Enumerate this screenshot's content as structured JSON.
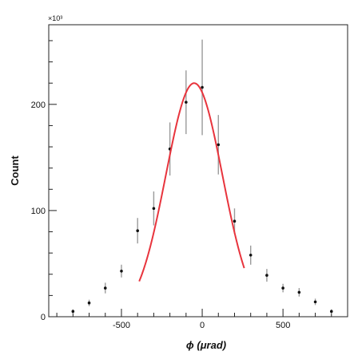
{
  "chart_data": {
    "type": "scatter",
    "title": "",
    "xlabel": "ϕ (μrad)",
    "ylabel": "Count",
    "y_multiplier_label": "×10³",
    "xlim": [
      -950,
      900
    ],
    "ylim": [
      0,
      275
    ],
    "x_ticks": [
      -500,
      0,
      500
    ],
    "x_tick_labels": [
      "-500",
      "0",
      "500"
    ],
    "y_ticks": [
      0,
      100,
      200
    ],
    "y_tick_labels": [
      "0",
      "100",
      "200"
    ],
    "grid": false,
    "series": [
      {
        "kind": "points_with_error_bars",
        "points": [
          {
            "x": -800,
            "y": 5,
            "err": 2
          },
          {
            "x": -700,
            "y": 13,
            "err": 3
          },
          {
            "x": -600,
            "y": 27,
            "err": 5
          },
          {
            "x": -500,
            "y": 43,
            "err": 6
          },
          {
            "x": -400,
            "y": 81,
            "err": 12
          },
          {
            "x": -300,
            "y": 102,
            "err": 16
          },
          {
            "x": -200,
            "y": 158,
            "err": 25
          },
          {
            "x": -100,
            "y": 202,
            "err": 30
          },
          {
            "x": 0,
            "y": 216,
            "err": 45
          },
          {
            "x": 100,
            "y": 162,
            "err": 28
          },
          {
            "x": 200,
            "y": 90,
            "err": 12
          },
          {
            "x": 300,
            "y": 58,
            "err": 9
          },
          {
            "x": 400,
            "y": 39,
            "err": 6
          },
          {
            "x": 500,
            "y": 27,
            "err": 4
          },
          {
            "x": 600,
            "y": 23,
            "err": 4
          },
          {
            "x": 700,
            "y": 14,
            "err": 3
          },
          {
            "x": 800,
            "y": 5,
            "err": 2
          }
        ]
      },
      {
        "kind": "fit_curve",
        "function": "gaussian",
        "amplitude": 220,
        "mean": -50,
        "sigma": 175,
        "x_range": [
          -390,
          260
        ],
        "color": "#e8343d"
      }
    ]
  }
}
